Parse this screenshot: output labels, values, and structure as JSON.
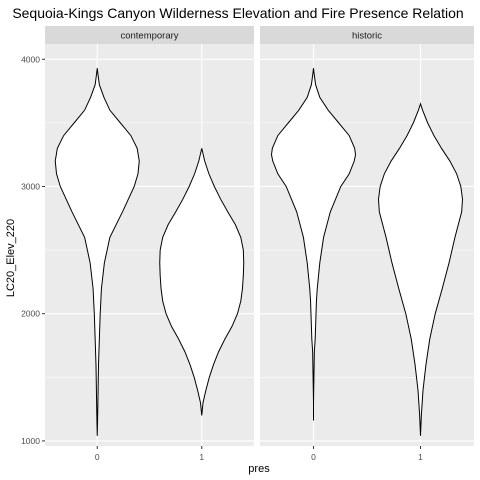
{
  "chart_data": {
    "type": "violin",
    "title": "Sequoia-Kings Canyon Wilderness Elevation and Fire Presence Relation",
    "xlabel": "pres",
    "ylabel": "LC20_Elev_220",
    "ylim": [
      960,
      4120
    ],
    "y_ticks": [
      1000,
      2000,
      3000,
      4000
    ],
    "x_categories": [
      "0",
      "1"
    ],
    "grid": true,
    "facets": [
      {
        "label": "contemporary",
        "violins": [
          {
            "category": "0",
            "min": 1040,
            "max": 3930,
            "profile": [
              [
                1040,
                0.0
              ],
              [
                1200,
                0.01
              ],
              [
                1400,
                0.02
              ],
              [
                1600,
                0.03
              ],
              [
                1800,
                0.05
              ],
              [
                2000,
                0.07
              ],
              [
                2200,
                0.1
              ],
              [
                2400,
                0.17
              ],
              [
                2600,
                0.3
              ],
              [
                2800,
                0.6
              ],
              [
                3000,
                0.88
              ],
              [
                3100,
                0.97
              ],
              [
                3200,
                1.0
              ],
              [
                3300,
                0.95
              ],
              [
                3400,
                0.8
              ],
              [
                3500,
                0.55
              ],
              [
                3600,
                0.3
              ],
              [
                3700,
                0.16
              ],
              [
                3800,
                0.05
              ],
              [
                3900,
                0.01
              ],
              [
                3930,
                0.0
              ]
            ]
          },
          {
            "category": "1",
            "min": 1200,
            "max": 3300,
            "profile": [
              [
                1200,
                0.0
              ],
              [
                1300,
                0.03
              ],
              [
                1400,
                0.1
              ],
              [
                1500,
                0.18
              ],
              [
                1600,
                0.28
              ],
              [
                1700,
                0.4
              ],
              [
                1800,
                0.55
              ],
              [
                1900,
                0.72
              ],
              [
                2000,
                0.85
              ],
              [
                2100,
                0.93
              ],
              [
                2200,
                0.97
              ],
              [
                2300,
                0.99
              ],
              [
                2400,
                1.0
              ],
              [
                2500,
                0.99
              ],
              [
                2600,
                0.93
              ],
              [
                2700,
                0.8
              ],
              [
                2800,
                0.62
              ],
              [
                2900,
                0.45
              ],
              [
                3000,
                0.3
              ],
              [
                3100,
                0.17
              ],
              [
                3200,
                0.07
              ],
              [
                3300,
                0.0
              ]
            ]
          }
        ]
      },
      {
        "label": "historic",
        "violins": [
          {
            "category": "0",
            "min": 1160,
            "max": 3930,
            "profile": [
              [
                1160,
                0.0
              ],
              [
                1300,
                0.0
              ],
              [
                1500,
                0.01
              ],
              [
                1700,
                0.02
              ],
              [
                1800,
                0.04
              ],
              [
                1900,
                0.05
              ],
              [
                2000,
                0.06
              ],
              [
                2100,
                0.07
              ],
              [
                2200,
                0.09
              ],
              [
                2400,
                0.15
              ],
              [
                2600,
                0.24
              ],
              [
                2800,
                0.4
              ],
              [
                3000,
                0.65
              ],
              [
                3100,
                0.85
              ],
              [
                3200,
                0.97
              ],
              [
                3250,
                1.0
              ],
              [
                3300,
                0.98
              ],
              [
                3400,
                0.85
              ],
              [
                3500,
                0.6
              ],
              [
                3600,
                0.35
              ],
              [
                3700,
                0.15
              ],
              [
                3800,
                0.05
              ],
              [
                3900,
                0.01
              ],
              [
                3930,
                0.0
              ]
            ]
          },
          {
            "category": "1",
            "min": 1040,
            "max": 3650,
            "profile": [
              [
                1040,
                0.0
              ],
              [
                1200,
                0.02
              ],
              [
                1400,
                0.06
              ],
              [
                1600,
                0.13
              ],
              [
                1800,
                0.22
              ],
              [
                2000,
                0.35
              ],
              [
                2200,
                0.52
              ],
              [
                2400,
                0.68
              ],
              [
                2600,
                0.82
              ],
              [
                2700,
                0.9
              ],
              [
                2800,
                0.98
              ],
              [
                2900,
                1.0
              ],
              [
                3000,
                0.96
              ],
              [
                3100,
                0.86
              ],
              [
                3200,
                0.7
              ],
              [
                3300,
                0.5
              ],
              [
                3400,
                0.32
              ],
              [
                3500,
                0.17
              ],
              [
                3600,
                0.05
              ],
              [
                3650,
                0.0
              ]
            ]
          }
        ]
      }
    ]
  }
}
